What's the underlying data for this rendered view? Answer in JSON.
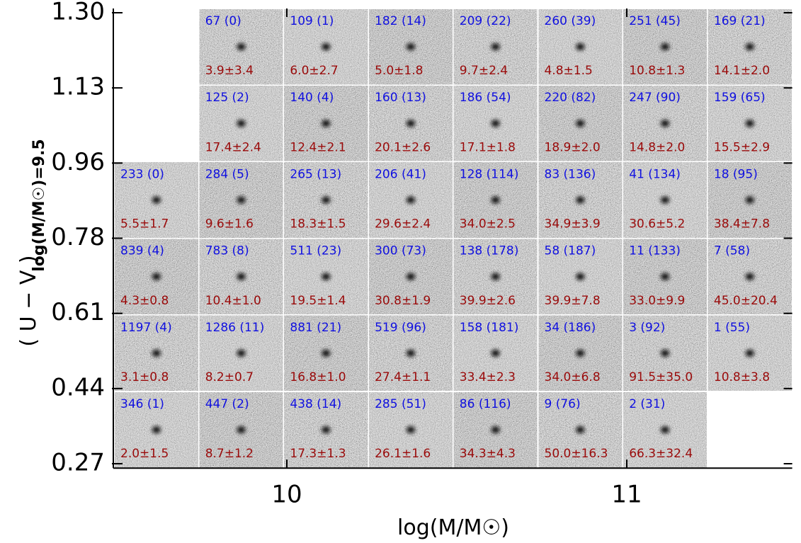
{
  "figure": {
    "y_label": "( U − V )",
    "y_label_sub": "log(M/M☉)=9.5",
    "x_label": "log(M/M☉)",
    "y_ticks": [
      "1.30",
      "1.13",
      "0.96",
      "0.78",
      "0.61",
      "0.44",
      "0.27"
    ],
    "x_ticks": [
      "10",
      "11"
    ],
    "rows": [
      [
        null,
        {
          "count": "67 (0)",
          "value": "3.9±3.4"
        },
        {
          "count": "109 (1)",
          "value": "6.0±2.7"
        },
        {
          "count": "182 (14)",
          "value": "5.0±1.8"
        },
        {
          "count": "209 (22)",
          "value": "9.7±2.4"
        },
        {
          "count": "260 (39)",
          "value": "4.8±1.5"
        },
        {
          "count": "251 (45)",
          "value": "10.8±1.3"
        },
        {
          "count": "169 (21)",
          "value": "14.1±2.0"
        }
      ],
      [
        null,
        {
          "count": "125 (2)",
          "value": "17.4±2.4"
        },
        {
          "count": "140 (4)",
          "value": "12.4±2.1"
        },
        {
          "count": "160 (13)",
          "value": "20.1±2.6"
        },
        {
          "count": "186 (54)",
          "value": "17.1±1.8"
        },
        {
          "count": "220 (82)",
          "value": "18.9±2.0"
        },
        {
          "count": "247 (90)",
          "value": "14.8±2.0"
        },
        {
          "count": "159 (65)",
          "value": "15.5±2.9"
        }
      ],
      [
        {
          "count": "233 (0)",
          "value": "5.5±1.7"
        },
        {
          "count": "284 (5)",
          "value": "9.6±1.6"
        },
        {
          "count": "265 (13)",
          "value": "18.3±1.5"
        },
        {
          "count": "206 (41)",
          "value": "29.6±2.4"
        },
        {
          "count": "128 (114)",
          "value": "34.0±2.5"
        },
        {
          "count": "83 (136)",
          "value": "34.9±3.9"
        },
        {
          "count": "41 (134)",
          "value": "30.6±5.2"
        },
        {
          "count": "18 (95)",
          "value": "38.4±7.8"
        }
      ],
      [
        {
          "count": "839 (4)",
          "value": "4.3±0.8"
        },
        {
          "count": "783 (8)",
          "value": "10.4±1.0"
        },
        {
          "count": "511 (23)",
          "value": "19.5±1.4"
        },
        {
          "count": "300 (73)",
          "value": "30.8±1.9"
        },
        {
          "count": "138 (178)",
          "value": "39.9±2.6"
        },
        {
          "count": "58 (187)",
          "value": "39.9±7.8"
        },
        {
          "count": "11 (133)",
          "value": "33.0±9.9"
        },
        {
          "count": "7 (58)",
          "value": "45.0±20.4"
        }
      ],
      [
        {
          "count": "1197 (4)",
          "value": "3.1±0.8"
        },
        {
          "count": "1286 (11)",
          "value": "8.2±0.7"
        },
        {
          "count": "881 (21)",
          "value": "16.8±1.0"
        },
        {
          "count": "519 (96)",
          "value": "27.4±1.1"
        },
        {
          "count": "158 (181)",
          "value": "33.4±2.3"
        },
        {
          "count": "34 (186)",
          "value": "34.0±6.8"
        },
        {
          "count": "3 (92)",
          "value": "91.5±35.0"
        },
        {
          "count": "1 (55)",
          "value": "10.8±3.8"
        }
      ],
      [
        {
          "count": "346 (1)",
          "value": "2.0±1.5"
        },
        {
          "count": "447 (2)",
          "value": "8.7±1.2"
        },
        {
          "count": "438 (14)",
          "value": "17.3±1.3"
        },
        {
          "count": "285 (51)",
          "value": "26.1±1.6"
        },
        {
          "count": "86 (116)",
          "value": "34.3±4.3"
        },
        {
          "count": "9 (76)",
          "value": "50.0±16.3"
        },
        {
          "count": "2 (31)",
          "value": "66.3±32.4"
        },
        null
      ]
    ]
  }
}
